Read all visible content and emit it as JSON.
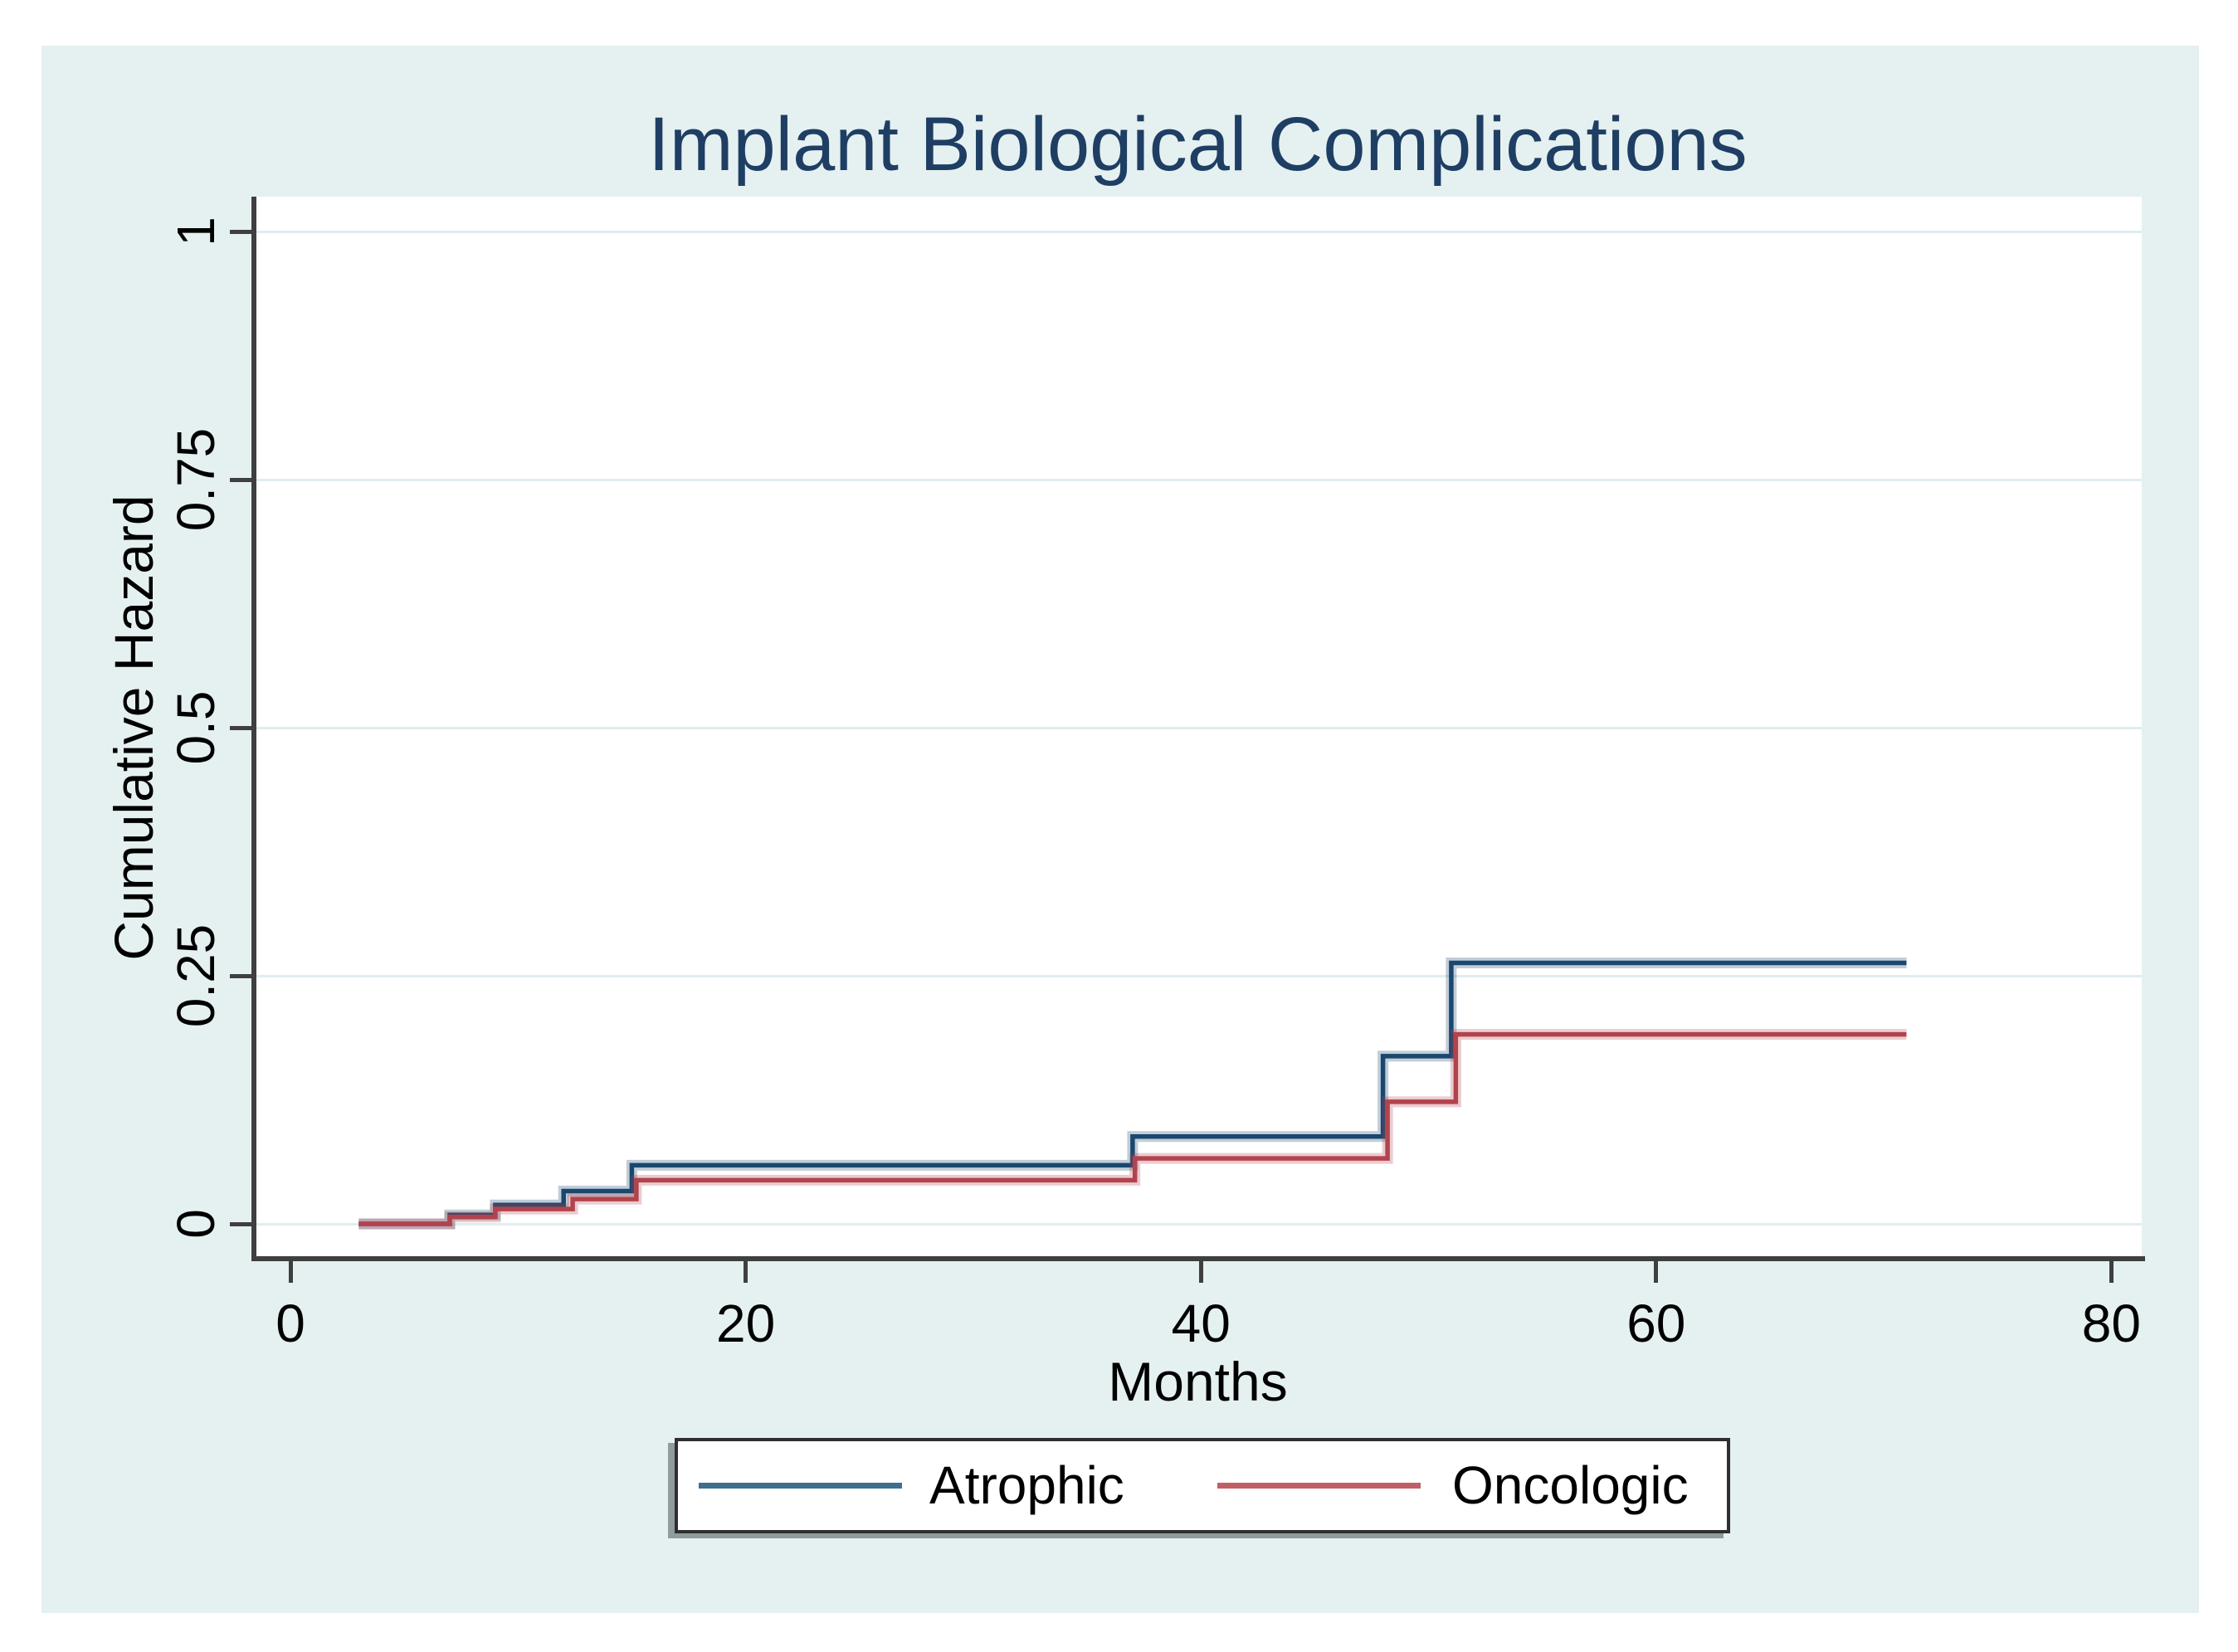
{
  "figure": {
    "title": "Implant Biological Complications"
  },
  "axes": {
    "x": {
      "title": "Months"
    },
    "y": {
      "title": "Cumulative Hazard"
    }
  },
  "legend": {
    "items": [
      {
        "label": "Atrophic",
        "color": "#3f6e8e"
      },
      {
        "label": "Oncologic",
        "color": "#c05f68"
      }
    ]
  },
  "colors": {
    "background_panel": "#e5f0f1",
    "plot_background": "#ffffff",
    "gridline": "#dfeef0",
    "axis": "#3f3f3f",
    "title_text": "#1e3e63",
    "atrophic_line": "#1a476f",
    "oncologic_line": "#b2434d"
  },
  "chart_data": {
    "type": "line",
    "subtype": "step-function (Nelson-Aalen cumulative hazard estimate)",
    "title": "Implant Biological Complications",
    "xlabel": "Months",
    "ylabel": "Cumulative Hazard",
    "xlim": [
      0,
      81.3
    ],
    "ylim": [
      0,
      1
    ],
    "x_ticks": [
      0,
      20,
      40,
      60,
      80
    ],
    "x_tick_labels": [
      "0",
      "20",
      "40",
      "60",
      "80"
    ],
    "y_ticks": [
      0,
      0.25,
      0.5,
      0.75,
      1
    ],
    "y_tick_labels": [
      "0",
      "0.25",
      "0.5",
      "0.75",
      "1"
    ],
    "grid": "horizontal gridlines at y ticks",
    "legend_position": "bottom center, boxed",
    "series": [
      {
        "name": "Atrophic",
        "color": "#1a476f",
        "steps": [
          [
            3,
            0
          ],
          [
            7,
            0.009
          ],
          [
            9,
            0.019
          ],
          [
            12,
            0.033
          ],
          [
            15,
            0.059
          ],
          [
            37,
            0.088
          ],
          [
            48,
            0.169
          ],
          [
            51,
            0.263
          ]
        ],
        "end_x": 71
      },
      {
        "name": "Oncologic",
        "color": "#b2434d",
        "steps": [
          [
            3,
            0
          ],
          [
            7,
            0.007
          ],
          [
            9,
            0.015
          ],
          [
            12.4,
            0.025
          ],
          [
            15.2,
            0.044
          ],
          [
            37.1,
            0.066
          ],
          [
            48.2,
            0.123
          ],
          [
            51.2,
            0.191
          ]
        ],
        "end_x": 71
      }
    ]
  }
}
